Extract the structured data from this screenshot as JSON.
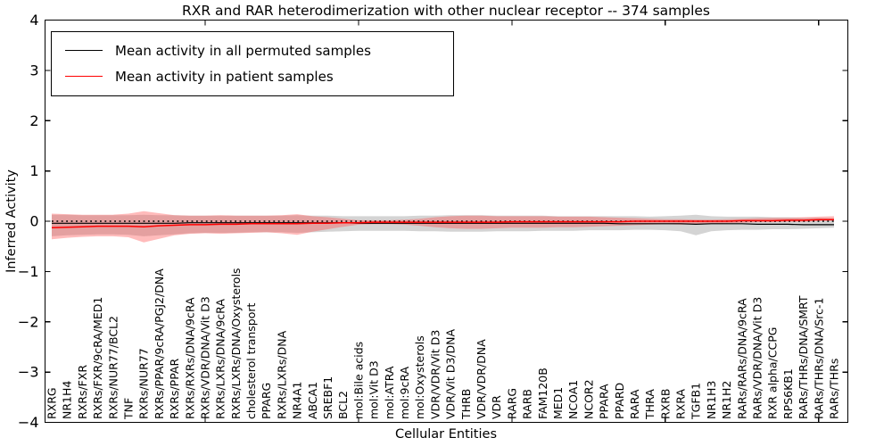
{
  "chart_data": {
    "type": "line",
    "title": "RXR and RAR heterodimerization with other nuclear receptor -- 374 samples",
    "xlabel": "Cellular Entities",
    "ylabel": "Inferred Activity",
    "ylim": [
      -4,
      4
    ],
    "yticks": [
      4,
      3,
      2,
      1,
      0,
      -1,
      -2,
      -3,
      -4
    ],
    "x_major_tick_indices": [
      10,
      20,
      30,
      40,
      50
    ],
    "grid": false,
    "legend_position": "upper left",
    "zero_line": {
      "y": 0,
      "style": "dotted",
      "color": "#000000"
    },
    "categories": [
      "RXRG",
      "NR1H4",
      "RXRs/FXR",
      "RXRs/FXR/9cRA/MED1",
      "RXRs/NUR77/BCL2",
      "TNF",
      "RXRs/NUR77",
      "RXRs/PPAR/9cRA/PGJ2/DNA",
      "RXRs/PPAR",
      "RXRs/RXRs/DNA/9cRA",
      "RXRs/VDR/DNA/Vit D3",
      "RXRs/LXRs/DNA/9cRA",
      "RXRs/LXRs/DNA/Oxysterols",
      "cholesterol transport",
      "PPARG",
      "RXRs/LXRs/DNA",
      "NR4A1",
      "ABCA1",
      "SREBF1",
      "BCL2",
      "mol:Bile acids",
      "mol:Vit D3",
      "mol:ATRA",
      "mol:9cRA",
      "mol:Oxysterols",
      "VDR/VDR/Vit D3",
      "VDR/Vit D3/DNA",
      "THRB",
      "VDR/VDR/DNA",
      "VDR",
      "RARG",
      "RARB",
      "FAM120B",
      "MED1",
      "NCOA1",
      "NCOR2",
      "PPARA",
      "PPARD",
      "RARA",
      "THRA",
      "RXRB",
      "RXRA",
      "TGFB1",
      "NR1H3",
      "NR1H2",
      "RARs/RARs/DNA/9cRA",
      "RARs/VDR/DNA/Vit D3",
      "RXR alpha/CCPG",
      "RPS6KB1",
      "RARs/THRs/DNA/SMRT",
      "RARs/THRs/DNA/Src-1",
      "RARs/THRs"
    ],
    "series": [
      {
        "name": "Mean activity in all permuted samples",
        "color": "#000000",
        "band_color": "#999999",
        "band_opacity": 0.42,
        "values": [
          -0.04,
          -0.04,
          -0.04,
          -0.04,
          -0.04,
          -0.04,
          -0.04,
          -0.04,
          -0.04,
          -0.03,
          -0.03,
          -0.03,
          -0.03,
          -0.03,
          -0.03,
          -0.03,
          -0.03,
          -0.03,
          -0.03,
          -0.03,
          -0.04,
          -0.04,
          -0.04,
          -0.04,
          -0.04,
          -0.04,
          -0.04,
          -0.04,
          -0.04,
          -0.04,
          -0.04,
          -0.04,
          -0.04,
          -0.04,
          -0.04,
          -0.04,
          -0.04,
          -0.05,
          -0.05,
          -0.05,
          -0.05,
          -0.05,
          -0.06,
          -0.05,
          -0.05,
          -0.05,
          -0.06,
          -0.06,
          -0.06,
          -0.07,
          -0.07,
          -0.07
        ],
        "band_upper": [
          0.13,
          0.13,
          0.12,
          0.12,
          0.12,
          0.12,
          0.13,
          0.12,
          0.12,
          0.11,
          0.11,
          0.11,
          0.11,
          0.11,
          0.11,
          0.11,
          0.12,
          0.11,
          0.11,
          0.1,
          0.1,
          0.1,
          0.1,
          0.1,
          0.11,
          0.11,
          0.12,
          0.12,
          0.12,
          0.11,
          0.11,
          0.11,
          0.11,
          0.1,
          0.1,
          0.1,
          0.1,
          0.1,
          0.1,
          0.09,
          0.1,
          0.11,
          0.13,
          0.1,
          0.09,
          0.09,
          0.09,
          0.08,
          0.08,
          0.07,
          0.07,
          0.06
        ],
        "band_lower": [
          -0.3,
          -0.28,
          -0.27,
          -0.26,
          -0.26,
          -0.27,
          -0.3,
          -0.28,
          -0.26,
          -0.24,
          -0.23,
          -0.23,
          -0.23,
          -0.22,
          -0.22,
          -0.22,
          -0.23,
          -0.22,
          -0.21,
          -0.2,
          -0.19,
          -0.19,
          -0.19,
          -0.19,
          -0.2,
          -0.2,
          -0.21,
          -0.21,
          -0.21,
          -0.2,
          -0.2,
          -0.2,
          -0.19,
          -0.19,
          -0.19,
          -0.18,
          -0.18,
          -0.18,
          -0.17,
          -0.17,
          -0.18,
          -0.2,
          -0.28,
          -0.2,
          -0.18,
          -0.17,
          -0.17,
          -0.16,
          -0.16,
          -0.15,
          -0.14,
          -0.13
        ]
      },
      {
        "name": "Mean activity in patient samples",
        "color": "#ff0000",
        "band_color": "#ff4d4d",
        "band_opacity": 0.38,
        "values": [
          -0.13,
          -0.12,
          -0.11,
          -0.1,
          -0.1,
          -0.1,
          -0.11,
          -0.09,
          -0.08,
          -0.07,
          -0.07,
          -0.06,
          -0.06,
          -0.05,
          -0.05,
          -0.05,
          -0.05,
          -0.04,
          -0.04,
          -0.03,
          -0.03,
          -0.02,
          -0.02,
          -0.02,
          -0.02,
          -0.02,
          -0.02,
          -0.02,
          -0.02,
          -0.02,
          -0.01,
          -0.01,
          -0.01,
          -0.01,
          -0.01,
          -0.01,
          -0.01,
          -0.01,
          0,
          0,
          0,
          0,
          0,
          0,
          0,
          0.01,
          0.01,
          0.01,
          0.02,
          0.02,
          0.03,
          0.03
        ],
        "band_upper": [
          0.15,
          0.14,
          0.13,
          0.13,
          0.13,
          0.15,
          0.2,
          0.16,
          0.12,
          0.11,
          0.11,
          0.12,
          0.11,
          0.11,
          0.11,
          0.12,
          0.14,
          0.1,
          0.08,
          0.05,
          0.02,
          0.02,
          0.02,
          0.03,
          0.05,
          0.08,
          0.1,
          0.11,
          0.11,
          0.1,
          0.1,
          0.1,
          0.1,
          0.09,
          0.09,
          0.09,
          0.08,
          0.07,
          0.06,
          0.05,
          0.04,
          0.04,
          0.03,
          0.03,
          0.04,
          0.05,
          0.06,
          0.07,
          0.07,
          0.08,
          0.09,
          0.1
        ],
        "band_lower": [
          -0.36,
          -0.33,
          -0.31,
          -0.3,
          -0.3,
          -0.32,
          -0.42,
          -0.35,
          -0.28,
          -0.25,
          -0.24,
          -0.25,
          -0.24,
          -0.23,
          -0.22,
          -0.24,
          -0.27,
          -0.21,
          -0.16,
          -0.11,
          -0.07,
          -0.06,
          -0.06,
          -0.07,
          -0.09,
          -0.12,
          -0.14,
          -0.15,
          -0.15,
          -0.14,
          -0.13,
          -0.13,
          -0.13,
          -0.12,
          -0.12,
          -0.11,
          -0.1,
          -0.09,
          -0.08,
          -0.07,
          -0.06,
          -0.07,
          -0.06,
          -0.05,
          -0.04,
          -0.03,
          -0.02,
          -0.02,
          -0.01,
          -0.01,
          0,
          0.01
        ]
      }
    ]
  }
}
